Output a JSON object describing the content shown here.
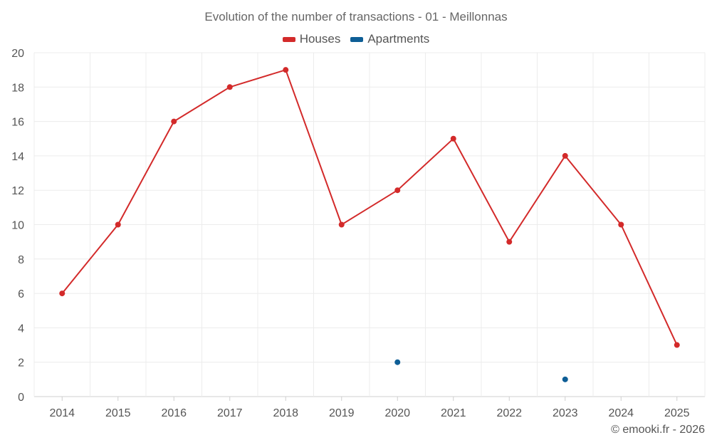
{
  "chart_data": {
    "type": "line",
    "title": "Evolution of the number of transactions - 01 - Meillonnas",
    "categories": [
      "2014",
      "2015",
      "2016",
      "2017",
      "2018",
      "2019",
      "2020",
      "2021",
      "2022",
      "2023",
      "2024",
      "2025"
    ],
    "series": [
      {
        "name": "Houses",
        "color": "#d32a2a",
        "values": [
          6,
          10,
          16,
          18,
          19,
          10,
          12,
          15,
          9,
          14,
          10,
          3
        ]
      },
      {
        "name": "Apartments",
        "color": "#0e5e96",
        "values": [
          null,
          null,
          null,
          null,
          null,
          null,
          2,
          null,
          null,
          1,
          null,
          null
        ]
      }
    ],
    "ylim": [
      0,
      20
    ],
    "yticks": [
      0,
      2,
      4,
      6,
      8,
      10,
      12,
      14,
      16,
      18,
      20
    ],
    "xlabel": "",
    "ylabel": "",
    "grid": true,
    "legend_position": "top-center"
  },
  "footer": {
    "credit": "© emooki.fr - 2026"
  }
}
